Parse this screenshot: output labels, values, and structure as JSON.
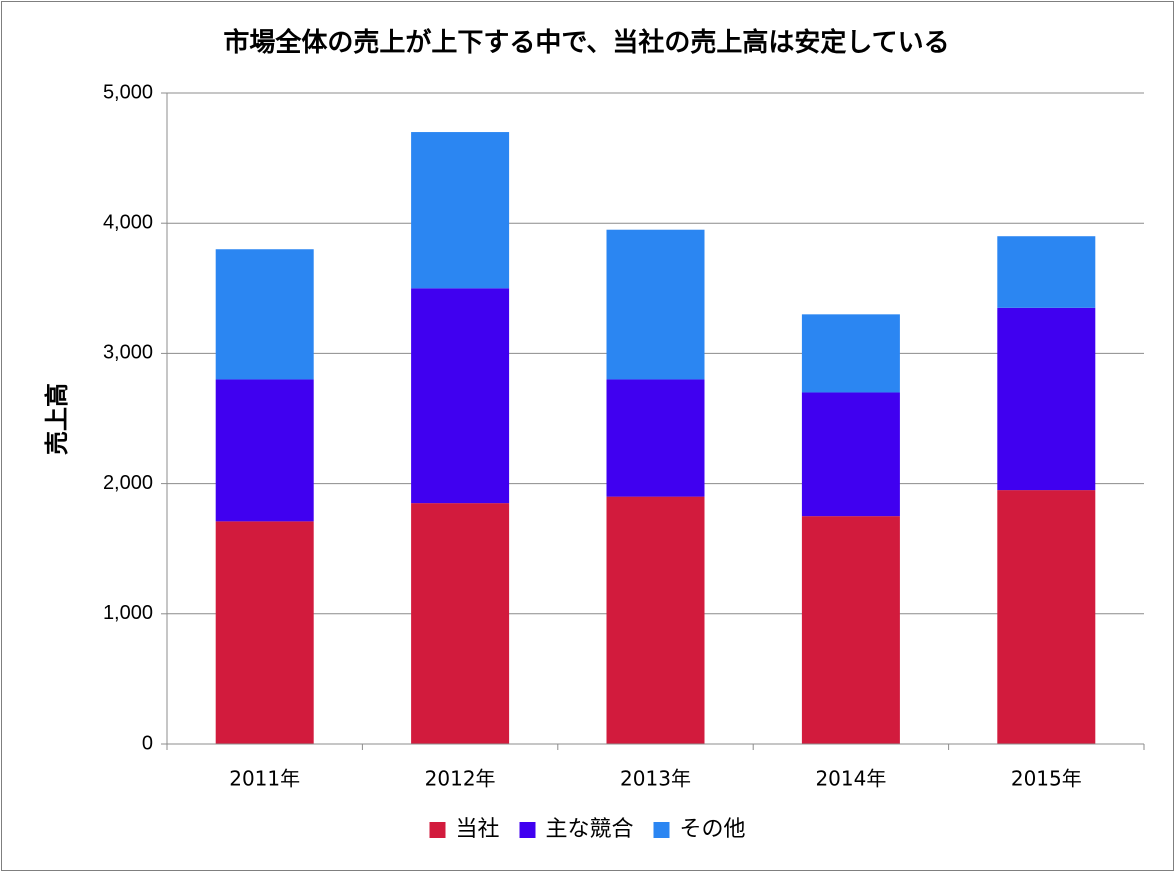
{
  "chart_data": {
    "type": "bar",
    "stacked": true,
    "title": "市場全体の売上が上下する中で、当社の売上高は安定している",
    "xlabel": "",
    "ylabel": "売上高",
    "categories": [
      "2011年",
      "2012年",
      "2013年",
      "2014年",
      "2015年"
    ],
    "series": [
      {
        "name": "当社",
        "color": "#D21B3D",
        "values": [
          1710,
          1850,
          1900,
          1750,
          1950
        ]
      },
      {
        "name": "主な競合",
        "color": "#4000F0",
        "values": [
          1090,
          1650,
          900,
          950,
          1400
        ]
      },
      {
        "name": "その他",
        "color": "#2B86F2",
        "values": [
          1000,
          1200,
          1150,
          600,
          550
        ]
      }
    ],
    "ylim": [
      0,
      5000
    ],
    "yticks": [
      0,
      1000,
      2000,
      3000,
      4000,
      5000
    ],
    "ytick_labels": [
      "0",
      "1,000",
      "2,000",
      "3,000",
      "4,000",
      "5,000"
    ],
    "grid": true,
    "legend_position": "bottom"
  }
}
